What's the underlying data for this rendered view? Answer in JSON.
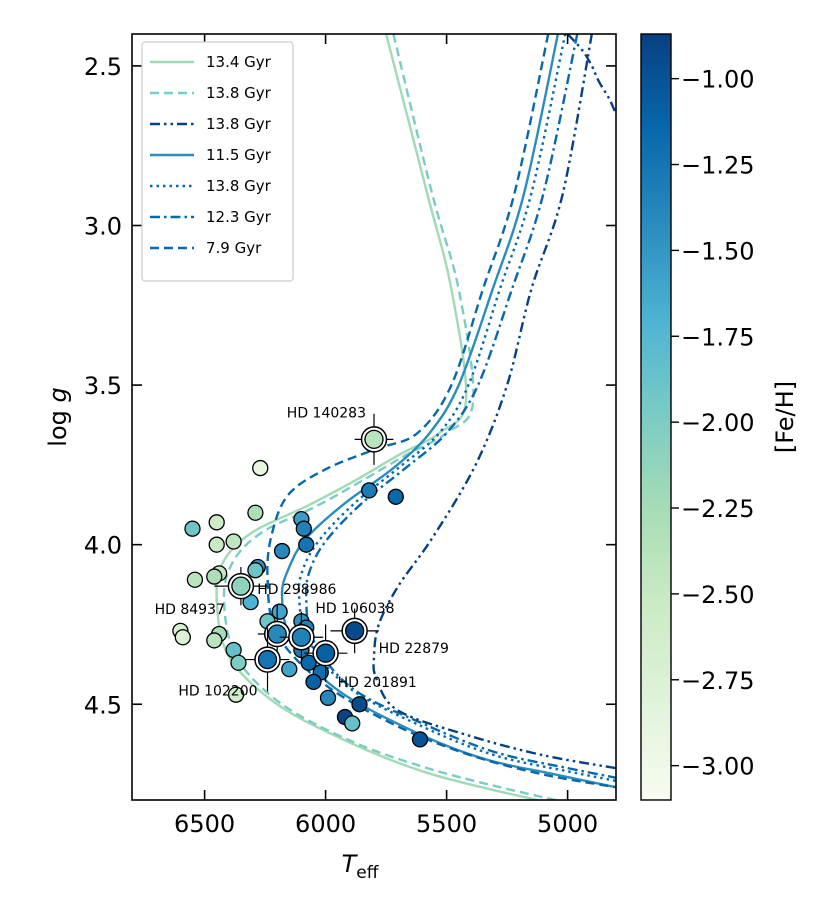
{
  "chart_data": {
    "type": "scatter",
    "xlabel_main": "T",
    "xlabel_sub": "eff",
    "ylabel_main": "log ",
    "ylabel_italic": "g",
    "colorbar_label": "[Fe/H]",
    "xlim": [
      6800,
      4800
    ],
    "ylim": [
      2.4,
      4.8
    ],
    "xticks": [
      6500,
      6000,
      5500,
      5000
    ],
    "xtick_labels": [
      "6500",
      "6000",
      "5500",
      "5000"
    ],
    "yticks": [
      2.5,
      3.0,
      3.5,
      4.0,
      4.5
    ],
    "ytick_labels": [
      "2.5",
      "3.0",
      "3.5",
      "4.0",
      "4.5"
    ],
    "colorbar_range": [
      -3.1,
      -0.87
    ],
    "colorbar_ticks": [
      -1.0,
      -1.25,
      -1.5,
      -1.75,
      -2.0,
      -2.25,
      -2.5,
      -2.75,
      -3.0
    ],
    "colorbar_tick_labels": [
      "−1.00",
      "−1.25",
      "−1.50",
      "−1.75",
      "−2.00",
      "−2.25",
      "−2.50",
      "−2.75",
      "−3.00"
    ],
    "colormap": [
      "#f7fcf0",
      "#e0f3db",
      "#ccebc5",
      "#a8ddb5",
      "#7bccc4",
      "#4eb3d3",
      "#2b8cbe",
      "#0868ac",
      "#084081"
    ],
    "legend_location": "upper left",
    "isochrones": [
      {
        "label": "13.4 Gyr",
        "color": "#a1dab4",
        "dash": "solid",
        "feh": -2.3,
        "x": [
          5750,
          5580,
          5480,
          5420,
          5530,
          5700,
          5880,
          6080,
          6300,
          6420,
          6450,
          6400,
          6200,
          5900,
          5600,
          5300,
          5000,
          4900
        ],
        "y": [
          2.4,
          2.9,
          3.2,
          3.55,
          3.65,
          3.72,
          3.8,
          3.88,
          3.96,
          4.05,
          4.17,
          4.35,
          4.5,
          4.62,
          4.71,
          4.77,
          4.82,
          4.84
        ]
      },
      {
        "label": "13.8 Gyr",
        "color": "#7bccc4",
        "dash": "dashed",
        "feh": -2.0,
        "x": [
          5720,
          5560,
          5450,
          5390,
          5500,
          5670,
          5850,
          6040,
          6260,
          6380,
          6420,
          6370,
          6180,
          5880,
          5580,
          5280,
          4990,
          4880
        ],
        "y": [
          2.4,
          2.9,
          3.2,
          3.55,
          3.65,
          3.72,
          3.8,
          3.88,
          3.96,
          4.05,
          4.17,
          4.35,
          4.5,
          4.62,
          4.7,
          4.76,
          4.81,
          4.83
        ]
      },
      {
        "label": "13.8 Gyr",
        "color": "#084081",
        "dash": "dashdotdot",
        "feh": -0.85,
        "x": [
          5000,
          4940,
          4900,
          4870,
          4830,
          4800
        ],
        "y": [
          2.4,
          2.45,
          2.5,
          2.55,
          2.6,
          2.65
        ]
      },
      {
        "label": "11.5 Gyr",
        "color": "#2b8cbe",
        "dash": "solid",
        "feh": -1.5,
        "x": [
          5040,
          5180,
          5310,
          5450,
          5570,
          5720,
          5920,
          6080,
          6150,
          6180,
          6140,
          5960,
          5650,
          5350,
          5050,
          4800
        ],
        "y": [
          2.4,
          2.9,
          3.2,
          3.5,
          3.65,
          3.76,
          3.87,
          3.98,
          4.07,
          4.16,
          4.3,
          4.45,
          4.58,
          4.67,
          4.72,
          4.76
        ]
      },
      {
        "label": "13.8 Gyr",
        "color": "#0868ac",
        "dash": "dotted",
        "feh": -1.3,
        "x": [
          5010,
          5150,
          5280,
          5410,
          5530,
          5700,
          5880,
          6020,
          6090,
          6110,
          6070,
          5900,
          5600,
          5300,
          5000,
          4800
        ],
        "y": [
          2.4,
          2.9,
          3.2,
          3.5,
          3.65,
          3.76,
          3.87,
          3.98,
          4.07,
          4.16,
          4.3,
          4.45,
          4.57,
          4.66,
          4.71,
          4.74
        ]
      },
      {
        "label": "12.3 Gyr",
        "color": "#0868ac",
        "dash": "dashdot",
        "feh": -1.15,
        "x": [
          4960,
          5100,
          5230,
          5370,
          5500,
          5670,
          5850,
          5990,
          6060,
          6080,
          6050,
          5890,
          5600,
          5300,
          5000,
          4800
        ],
        "y": [
          2.4,
          2.9,
          3.2,
          3.5,
          3.65,
          3.76,
          3.87,
          3.98,
          4.07,
          4.16,
          4.3,
          4.45,
          4.56,
          4.65,
          4.7,
          4.73
        ]
      },
      {
        "label": "7.9 Gyr",
        "color": "#0868ac",
        "dash": "dashed",
        "feh": -1.2,
        "x": [
          5080,
          5220,
          5350,
          5480,
          5620,
          5790,
          5990,
          6150,
          6220,
          6240,
          6200,
          6000,
          5700,
          5400,
          5100,
          4800
        ],
        "y": [
          2.4,
          2.9,
          3.2,
          3.5,
          3.65,
          3.7,
          3.76,
          3.84,
          3.96,
          4.1,
          4.28,
          4.44,
          4.57,
          4.66,
          4.72,
          4.76
        ]
      }
    ],
    "extra_curve": {
      "color": "#084081",
      "dash": "dashdotdot",
      "x": [
        4900,
        5020,
        5150,
        5250,
        5380,
        5560,
        5700,
        5780,
        5800,
        5790,
        5700,
        5400,
        5100,
        4800
      ],
      "y": [
        2.4,
        2.9,
        3.2,
        3.5,
        3.75,
        3.98,
        4.13,
        4.25,
        4.35,
        4.42,
        4.52,
        4.6,
        4.66,
        4.7
      ]
    },
    "stars": [
      {
        "x": 6270,
        "y": 3.76,
        "feh": -2.9
      },
      {
        "x": 6290,
        "y": 3.9,
        "feh": -2.3
      },
      {
        "x": 6550,
        "y": 3.95,
        "feh": -1.9
      },
      {
        "x": 6450,
        "y": 3.93,
        "feh": -2.55
      },
      {
        "x": 6380,
        "y": 3.99,
        "feh": -2.45
      },
      {
        "x": 6450,
        "y": 4.0,
        "feh": -2.5
      },
      {
        "x": 6100,
        "y": 3.92,
        "feh": -1.55
      },
      {
        "x": 6090,
        "y": 3.95,
        "feh": -1.35
      },
      {
        "x": 6080,
        "y": 4.0,
        "feh": -1.25
      },
      {
        "x": 6180,
        "y": 4.02,
        "feh": -1.4
      },
      {
        "x": 5820,
        "y": 3.83,
        "feh": -1.3
      },
      {
        "x": 5710,
        "y": 3.85,
        "feh": -1.15
      },
      {
        "x": 6280,
        "y": 4.07,
        "feh": -1.5
      },
      {
        "x": 6290,
        "y": 4.08,
        "feh": -1.9
      },
      {
        "x": 6440,
        "y": 4.09,
        "feh": -2.5
      },
      {
        "x": 6460,
        "y": 4.1,
        "feh": -2.3
      },
      {
        "x": 6540,
        "y": 4.11,
        "feh": -2.4
      },
      {
        "x": 6310,
        "y": 4.18,
        "feh": -1.7
      },
      {
        "x": 6190,
        "y": 4.21,
        "feh": -1.6
      },
      {
        "x": 6100,
        "y": 4.24,
        "feh": -1.45
      },
      {
        "x": 6080,
        "y": 4.26,
        "feh": -1.35
      },
      {
        "x": 6240,
        "y": 4.24,
        "feh": -1.9
      },
      {
        "x": 6600,
        "y": 4.27,
        "feh": -2.7
      },
      {
        "x": 6590,
        "y": 4.29,
        "feh": -2.75
      },
      {
        "x": 6440,
        "y": 4.28,
        "feh": -2.25
      },
      {
        "x": 6460,
        "y": 4.3,
        "feh": -2.4
      },
      {
        "x": 6380,
        "y": 4.33,
        "feh": -1.85
      },
      {
        "x": 6100,
        "y": 4.33,
        "feh": -1.3
      },
      {
        "x": 6070,
        "y": 4.37,
        "feh": -1.15
      },
      {
        "x": 6150,
        "y": 4.39,
        "feh": -1.6
      },
      {
        "x": 6360,
        "y": 4.37,
        "feh": -2.0
      },
      {
        "x": 6020,
        "y": 4.4,
        "feh": -1.2
      },
      {
        "x": 6050,
        "y": 4.43,
        "feh": -1.1
      },
      {
        "x": 5990,
        "y": 4.48,
        "feh": -1.4
      },
      {
        "x": 5860,
        "y": 4.5,
        "feh": -0.95
      },
      {
        "x": 5920,
        "y": 4.54,
        "feh": -0.9
      },
      {
        "x": 5890,
        "y": 4.56,
        "feh": -1.85
      },
      {
        "x": 6370,
        "y": 4.47,
        "feh": -2.6
      },
      {
        "x": 5610,
        "y": 4.61,
        "feh": -1.0
      }
    ],
    "featured": [
      {
        "name": "HD 140283",
        "x": 5800,
        "y": 3.67,
        "feh": -2.4,
        "xerr": 80,
        "yerr": 0.08,
        "label_anchor": "end",
        "label_dx": -8,
        "label_dy": -22
      },
      {
        "name": "HD 84937",
        "x": 6350,
        "y": 4.13,
        "feh": -2.1,
        "xerr": 110,
        "yerr": 0.06,
        "label_anchor": "end",
        "label_dx": -16,
        "label_dy": 28
      },
      {
        "name": "HD 298986",
        "x": 6200,
        "y": 4.28,
        "feh": -1.4,
        "xerr": 80,
        "yerr": 0.09,
        "label_anchor": "start",
        "label_dx": -20,
        "label_dy": -40
      },
      {
        "name": "HD 106038",
        "x": 6100,
        "y": 4.29,
        "feh": -1.35,
        "xerr": 90,
        "yerr": 0.08,
        "label_anchor": "start",
        "label_dx": 14,
        "label_dy": -24
      },
      {
        "name": "HD 22879",
        "x": 5880,
        "y": 4.27,
        "feh": -0.95,
        "xerr": 100,
        "yerr": 0.07,
        "label_anchor": "start",
        "label_dx": 24,
        "label_dy": 22
      },
      {
        "name": "HD 201891",
        "x": 6000,
        "y": 4.34,
        "feh": -1.1,
        "xerr": 90,
        "yerr": 0.09,
        "label_anchor": "start",
        "label_dx": 12,
        "label_dy": 34
      },
      {
        "name": "HD 102200",
        "x": 6240,
        "y": 4.36,
        "feh": -1.25,
        "xerr": 90,
        "yerr": 0.1,
        "label_anchor": "end",
        "label_dx": -10,
        "label_dy": 36
      }
    ]
  }
}
